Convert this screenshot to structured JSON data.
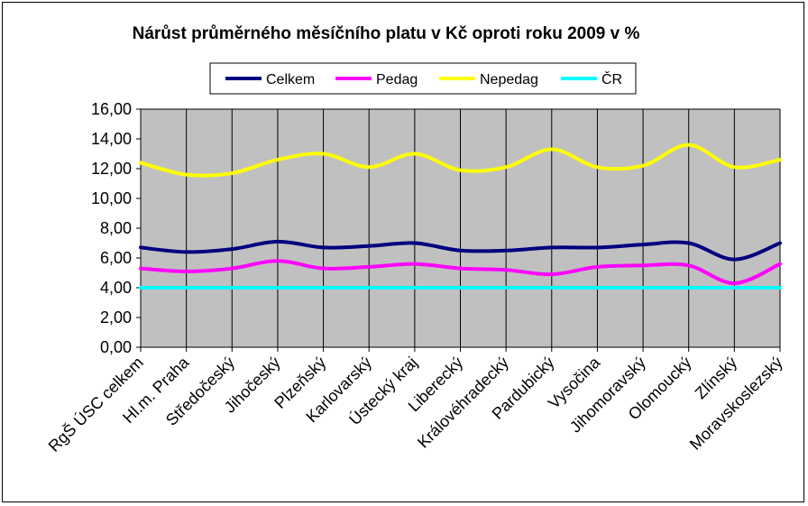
{
  "chart_data": {
    "type": "line",
    "title": "Nárůst průměrného měsíčního platu v Kč oproti roku 2009 v %",
    "xlabel": "",
    "ylabel": "",
    "ylim": [
      0,
      16
    ],
    "yticks": [
      "0,00",
      "2,00",
      "4,00",
      "6,00",
      "8,00",
      "10,00",
      "12,00",
      "14,00",
      "16,00"
    ],
    "grid": "vertical category gridlines on",
    "legend_position": "top",
    "plot_background": "#c0c0c0",
    "categories": [
      "RgŠ ÚSC celkem",
      "Hl.m. Praha",
      "Středočeský",
      "Jihočeský",
      "Plzeňský",
      "Karlovarský",
      "Ústecký kraj",
      "Liberecký",
      "Královéhradecký",
      "Pardubický",
      "Vysočina",
      "Jihomoravský",
      "Olomoucký",
      "Zlínský",
      "Moravskoslezský"
    ],
    "series": [
      {
        "name": "Celkem",
        "color": "#000080",
        "values": [
          6.7,
          6.4,
          6.6,
          7.1,
          6.7,
          6.8,
          7.0,
          6.5,
          6.5,
          6.7,
          6.7,
          6.9,
          7.0,
          5.9,
          7.0
        ]
      },
      {
        "name": "Pedag",
        "color": "#ff00ff",
        "values": [
          5.3,
          5.1,
          5.3,
          5.8,
          5.3,
          5.4,
          5.6,
          5.3,
          5.2,
          4.9,
          5.4,
          5.5,
          5.5,
          4.3,
          5.6
        ]
      },
      {
        "name": "Nepedag",
        "color": "#ffff00",
        "values": [
          12.4,
          11.6,
          11.7,
          12.6,
          13.0,
          12.1,
          13.0,
          11.9,
          12.1,
          13.3,
          12.1,
          12.2,
          13.6,
          12.1,
          12.6
        ]
      },
      {
        "name": "ČR",
        "color": "#00ffff",
        "values": [
          4.0,
          4.0,
          4.0,
          4.0,
          4.0,
          4.0,
          4.0,
          4.0,
          4.0,
          4.0,
          4.0,
          4.0,
          4.0,
          4.0,
          4.0
        ]
      }
    ]
  }
}
